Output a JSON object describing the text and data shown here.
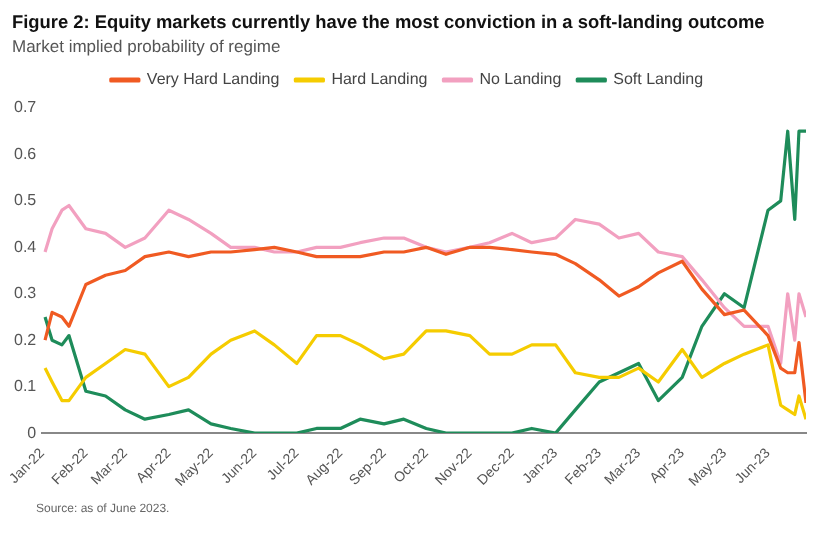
{
  "chart_data": {
    "type": "line",
    "title": "Figure 2: Equity markets currently have the most conviction in a soft-landing outcome",
    "subtitle": "Market implied probability of regime",
    "annotations": [
      "Source: as of June 2023."
    ],
    "x": [
      "2022-01-03",
      "2022-01-08",
      "2022-01-15",
      "2022-01-20",
      "2022-02-01",
      "2022-02-15",
      "2022-03-01",
      "2022-03-15",
      "2022-04-01",
      "2022-04-15",
      "2022-05-01",
      "2022-05-15",
      "2022-06-01",
      "2022-06-15",
      "2022-07-01",
      "2022-07-15",
      "2022-08-01",
      "2022-08-15",
      "2022-09-01",
      "2022-09-15",
      "2022-10-01",
      "2022-10-15",
      "2022-11-01",
      "2022-11-15",
      "2022-12-01",
      "2022-12-15",
      "2023-01-01",
      "2023-01-15",
      "2023-02-01",
      "2023-02-15",
      "2023-03-01",
      "2023-03-15",
      "2023-04-01",
      "2023-04-15",
      "2023-05-01",
      "2023-05-15",
      "2023-06-01",
      "2023-06-10",
      "2023-06-15",
      "2023-06-20",
      "2023-06-23",
      "2023-06-28"
    ],
    "series": [
      {
        "name": "Very Hard Landing",
        "color": "#f05a22",
        "values": [
          0.2,
          0.26,
          0.25,
          0.23,
          0.32,
          0.34,
          0.35,
          0.38,
          0.39,
          0.38,
          0.39,
          0.39,
          0.395,
          0.4,
          0.39,
          0.38,
          0.38,
          0.38,
          0.39,
          0.39,
          0.4,
          0.385,
          0.4,
          0.4,
          0.395,
          0.39,
          0.385,
          0.365,
          0.33,
          0.295,
          0.315,
          0.345,
          0.37,
          0.31,
          0.255,
          0.265,
          0.21,
          0.14,
          0.13,
          0.13,
          0.195,
          0.065
        ]
      },
      {
        "name": "Hard Landing",
        "color": "#f5cc00",
        "values": [
          0.14,
          0.11,
          0.07,
          0.07,
          0.12,
          0.15,
          0.18,
          0.17,
          0.1,
          0.12,
          0.17,
          0.2,
          0.22,
          0.19,
          0.15,
          0.21,
          0.21,
          0.19,
          0.16,
          0.17,
          0.22,
          0.22,
          0.21,
          0.17,
          0.17,
          0.19,
          0.19,
          0.13,
          0.12,
          0.12,
          0.14,
          0.11,
          0.18,
          0.12,
          0.15,
          0.17,
          0.19,
          0.06,
          0.05,
          0.04,
          0.08,
          0.03
        ]
      },
      {
        "name": "No Landing",
        "color": "#f2a0c0",
        "values": [
          0.39,
          0.44,
          0.48,
          0.49,
          0.44,
          0.43,
          0.4,
          0.42,
          0.48,
          0.46,
          0.43,
          0.4,
          0.4,
          0.39,
          0.39,
          0.4,
          0.4,
          0.41,
          0.42,
          0.42,
          0.4,
          0.39,
          0.4,
          0.41,
          0.43,
          0.41,
          0.42,
          0.46,
          0.45,
          0.42,
          0.43,
          0.39,
          0.38,
          0.33,
          0.27,
          0.23,
          0.23,
          0.15,
          0.3,
          0.2,
          0.3,
          0.25
        ]
      },
      {
        "name": "Soft Landing",
        "color": "#1e8c5a",
        "values": [
          0.25,
          0.2,
          0.19,
          0.21,
          0.09,
          0.08,
          0.05,
          0.03,
          0.04,
          0.05,
          0.02,
          0.01,
          0.0,
          0.0,
          0.0,
          0.01,
          0.01,
          0.03,
          0.02,
          0.03,
          0.01,
          0.0,
          0.0,
          0.0,
          0.0,
          0.01,
          0.0,
          0.05,
          0.11,
          0.13,
          0.15,
          0.07,
          0.12,
          0.23,
          0.3,
          0.27,
          0.48,
          0.5,
          0.65,
          0.46,
          0.65,
          0.65
        ]
      }
    ],
    "xlim": [
      "2022-01-01",
      "2023-06-28"
    ],
    "xticks": [
      {
        "value": "2022-01",
        "label": "Jan-22"
      },
      {
        "value": "2022-02",
        "label": "Feb-22"
      },
      {
        "value": "2022-03",
        "label": "Mar-22"
      },
      {
        "value": "2022-04",
        "label": "Apr-22"
      },
      {
        "value": "2022-05",
        "label": "May-22"
      },
      {
        "value": "2022-06",
        "label": "Jun-22"
      },
      {
        "value": "2022-07",
        "label": "Jul-22"
      },
      {
        "value": "2022-08",
        "label": "Aug-22"
      },
      {
        "value": "2022-09",
        "label": "Sep-22"
      },
      {
        "value": "2022-10",
        "label": "Oct-22"
      },
      {
        "value": "2022-11",
        "label": "Nov-22"
      },
      {
        "value": "2022-12",
        "label": "Dec-22"
      },
      {
        "value": "2023-01",
        "label": "Jan-23"
      },
      {
        "value": "2023-02",
        "label": "Feb-23"
      },
      {
        "value": "2023-03",
        "label": "Mar-23"
      },
      {
        "value": "2023-04",
        "label": "Apr-23"
      },
      {
        "value": "2023-05",
        "label": "May-23"
      },
      {
        "value": "2023-06",
        "label": "Jun-23"
      }
    ],
    "ylim": [
      0,
      0.7
    ],
    "yticks": [
      0,
      0.1,
      0.2,
      0.3,
      0.4,
      0.5,
      0.6,
      0.7
    ],
    "grid": false,
    "legend": "top",
    "marker": "none",
    "line_style": "solid"
  }
}
